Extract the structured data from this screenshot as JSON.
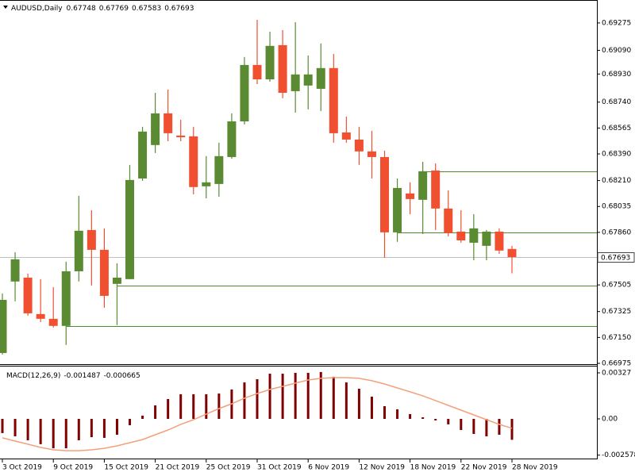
{
  "chart_data": [
    {
      "type": "candlestick",
      "title": "AUDUSD,Daily",
      "categories": [
        "3 Oct 2019",
        null,
        null,
        null,
        "9 Oct 2019",
        null,
        null,
        null,
        "15 Oct 2019",
        null,
        null,
        null,
        "21 Oct 2019",
        null,
        null,
        null,
        "25 Oct 2019",
        null,
        null,
        null,
        "31 Oct 2019",
        null,
        null,
        null,
        "6 Nov 2019",
        null,
        null,
        null,
        "12 Nov 2019",
        null,
        null,
        null,
        "18 Nov 2019",
        null,
        null,
        null,
        "22 Nov 2019",
        null,
        null,
        null,
        "28 Nov 2019"
      ],
      "open": [
        0.67045,
        0.67528,
        0.67554,
        0.67308,
        0.67276,
        0.67228,
        0.67597,
        0.67876,
        0.67742,
        0.67512,
        0.67544,
        0.68224,
        0.6845,
        0.68664,
        0.68514,
        0.68509,
        0.68171,
        0.68187,
        0.68369,
        0.6861,
        0.68991,
        0.68894,
        0.69125,
        0.68814,
        0.68852,
        0.6883,
        0.6897,
        0.68535,
        0.68487,
        0.68407,
        0.68369,
        0.6786,
        0.68123,
        0.6808,
        0.68278,
        0.68021,
        0.67865,
        0.6779,
        0.67769,
        0.67865,
        0.67748
      ],
      "high": [
        0.67447,
        0.67726,
        0.67581,
        0.67544,
        0.6749,
        0.67662,
        0.68107,
        0.6801,
        0.67887,
        0.67651,
        0.68316,
        0.68573,
        0.68803,
        0.68825,
        0.68621,
        0.68573,
        0.68375,
        0.68466,
        0.68664,
        0.69045,
        0.69296,
        0.69216,
        0.69227,
        0.6928,
        0.69055,
        0.69136,
        0.69066,
        0.68642,
        0.68573,
        0.68546,
        0.68412,
        0.68224,
        0.68198,
        0.68337,
        0.68326,
        0.68144,
        0.6801,
        0.67983,
        0.67876,
        0.67887,
        0.67769
      ],
      "low": [
        0.67035,
        0.67394,
        0.67297,
        0.67254,
        0.67217,
        0.67099,
        0.67528,
        0.67501,
        0.67351,
        0.67233,
        0.67544,
        0.68208,
        0.68396,
        0.68476,
        0.68476,
        0.68117,
        0.6809,
        0.68101,
        0.68358,
        0.68589,
        0.68862,
        0.68878,
        0.68766,
        0.68669,
        0.68691,
        0.6868,
        0.68466,
        0.68466,
        0.68316,
        0.68224,
        0.67688,
        0.67796,
        0.67983,
        0.67849,
        0.67876,
        0.67833,
        0.6779,
        0.67672,
        0.67672,
        0.67715,
        0.67583
      ],
      "close": [
        0.67404,
        0.67678,
        0.67313,
        0.67276,
        0.67228,
        0.67597,
        0.67871,
        0.67742,
        0.67431,
        0.67554,
        0.68214,
        0.68541,
        0.68664,
        0.6853,
        0.68503,
        0.68166,
        0.68198,
        0.68375,
        0.6861,
        0.68991,
        0.68894,
        0.6912,
        0.68803,
        0.68927,
        0.68927,
        0.6897,
        0.6853,
        0.68487,
        0.68407,
        0.68369,
        0.6786,
        0.6816,
        0.68085,
        0.68273,
        0.68021,
        0.67855,
        0.67806,
        0.67887,
        0.67865,
        0.67737,
        0.67693
      ],
      "up_color": "#5a8a32",
      "down_color": "#f05030",
      "levels": [
        0.68273,
        0.6786,
        0.67501,
        0.67228
      ],
      "level_color": "#4f8a2e",
      "ylim": [
        0.66975,
        0.6943
      ],
      "yticks": [
        0.69275,
        {
          "value": 0.6909,
          "label": "0.69090"
        },
        {
          "value": 0.6893,
          "label": "0.68930"
        },
        {
          "value": 0.6874,
          "label": "0.68740"
        },
        0.68565,
        {
          "value": 0.6839,
          "label": "0.68390"
        },
        {
          "value": 0.6821,
          "label": "0.68210"
        },
        0.68035,
        {
          "value": 0.6786,
          "label": "0.67860"
        },
        0.67505,
        0.67325,
        {
          "value": 0.6715,
          "label": "0.67150"
        },
        0.66975
      ]
    },
    {
      "type": "macd",
      "title": "MACD(12,26,9)",
      "histogram": [
        -0.00101,
        -0.00124,
        -0.00152,
        -0.0018,
        -0.00209,
        -0.00209,
        -0.00152,
        -0.0013,
        -0.00135,
        -0.00113,
        -0.00045,
        0.00023,
        0.00096,
        0.00141,
        0.00175,
        0.00175,
        0.00175,
        0.0018,
        0.00209,
        0.00259,
        0.00282,
        0.00321,
        0.00321,
        0.00327,
        0.00327,
        0.00333,
        0.00299,
        0.00259,
        0.00214,
        0.00158,
        0.0009,
        0.00068,
        0.00034,
        0.00011,
        -0.00011,
        -0.00039,
        -0.00079,
        -0.00107,
        -0.00124,
        -0.00113,
        -0.001487
      ],
      "signal": [
        -0.00135,
        -0.00158,
        -0.0018,
        -0.00203,
        -0.0022,
        -0.00226,
        -0.00226,
        -0.0022,
        -0.00209,
        -0.00192,
        -0.00169,
        -0.00147,
        -0.00113,
        -0.00079,
        -0.00039,
        -6e-05,
        0.00034,
        0.00073,
        0.00107,
        0.00147,
        0.0018,
        0.00209,
        0.00231,
        0.00254,
        0.00276,
        0.00288,
        0.00293,
        0.00293,
        0.00288,
        0.00271,
        0.00248,
        0.0022,
        0.00192,
        0.00164,
        0.0013,
        0.00096,
        0.00062,
        0.00028,
        -6e-05,
        -0.00039,
        -0.000665
      ],
      "histogram_color": "#800000",
      "signal_color": "#f4a07a",
      "ylim": [
        -0.00282,
        0.00372
      ],
      "yticks": [
        0.00327,
        {
          "value": 0,
          "label": "0.00"
        },
        -0.002578
      ]
    }
  ]
}
